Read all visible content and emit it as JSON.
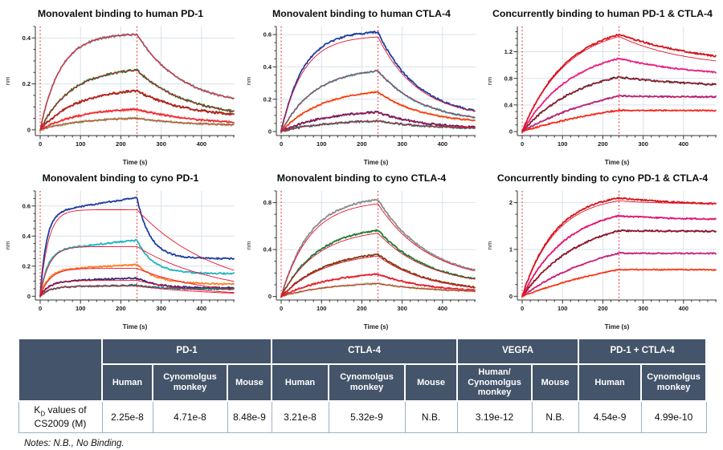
{
  "chart_data": [
    {
      "type": "line",
      "title": "Monovalent binding to human PD-1",
      "xlabel": "Time (s)",
      "ylabel": "nm",
      "xlim": [
        -12,
        482
      ],
      "ylim": [
        -0.025,
        0.45
      ],
      "xticks": [
        0,
        100,
        200,
        300,
        400
      ],
      "yticks": [
        0,
        0.2,
        0.4
      ],
      "x_minor_step": 20,
      "t_dissoc": 240,
      "grid": true,
      "noise": 0.005,
      "fit_color": "#e8112d",
      "dash_color": "#f21d1d",
      "series": [
        {
          "color": "#8a8a8a",
          "peak": 0.415,
          "ka": 0.02,
          "end": 0.1,
          "kd": 0.009
        },
        {
          "color": "#1e7a33",
          "peak": 0.26,
          "ka": 0.013,
          "end": 0.05,
          "kd": 0.008
        },
        {
          "color": "#8a2f10",
          "peak": 0.17,
          "ka": 0.011,
          "end": 0.05,
          "kd": 0.008
        },
        {
          "color": "#f8524a",
          "peak": 0.09,
          "ka": 0.01,
          "end": 0.02,
          "kd": 0.007
        },
        {
          "color": "#8aba6c",
          "peak": 0.05,
          "ka": 0.01,
          "end": 0.015,
          "kd": 0.007
        }
      ]
    },
    {
      "type": "line",
      "title": "Monovalent binding to human CTLA-4",
      "xlabel": "Time (s)",
      "ylabel": "nm",
      "xlim": [
        -12,
        482
      ],
      "ylim": [
        -0.025,
        0.65
      ],
      "xticks": [
        0,
        100,
        200,
        300,
        400
      ],
      "yticks": [
        0,
        0.2,
        0.4,
        0.6
      ],
      "x_minor_step": 20,
      "t_dissoc": 240,
      "grid": true,
      "noise": 0.006,
      "fit_color": "#e8112d",
      "dash_color": "#f21d1d",
      "series": [
        {
          "color": "#1e3f9e",
          "peak": 0.615,
          "ka": 0.018,
          "end": 0.08,
          "kd": 0.01,
          "fit": {
            "peak": 0.585
          }
        },
        {
          "color": "#20b4bc",
          "peak": 0.375,
          "ka": 0.012,
          "end": 0.05,
          "kd": 0.009
        },
        {
          "color": "#ff7e22",
          "peak": 0.245,
          "ka": 0.01,
          "end": 0.045,
          "kd": 0.009
        },
        {
          "color": "#3a2272",
          "peak": 0.12,
          "ka": 0.009,
          "end": 0.015,
          "kd": 0.009
        },
        {
          "color": "#247270",
          "peak": 0.065,
          "ka": 0.009,
          "end": 0.015,
          "kd": 0.008
        }
      ]
    },
    {
      "type": "line",
      "title": "Concurrently binding to human PD-1 & CTLA-4",
      "xlabel": "Time (s)",
      "ylabel": "nm",
      "xlim": [
        -12,
        482
      ],
      "ylim": [
        -0.06,
        1.58
      ],
      "xticks": [
        0,
        100,
        200,
        300,
        400
      ],
      "yticks": [
        0,
        0.4,
        0.8,
        1.2
      ],
      "x_minor_step": 20,
      "t_dissoc": 240,
      "grid": true,
      "noise": 0.012,
      "fit_color": "#e8112d",
      "dash_color": "#f21d1d",
      "series": [
        {
          "color": "#d41418",
          "peak": 1.46,
          "ka": 0.009,
          "end": 0.93,
          "kd": 0.004,
          "fit": {
            "peak": 1.43,
            "end": 0.95,
            "kd": 0.006
          }
        },
        {
          "color": "#e83cc8",
          "peak": 1.1,
          "ka": 0.008,
          "end": 0.8,
          "kd": 0.005
        },
        {
          "color": "#2e2a2a",
          "peak": 0.82,
          "ka": 0.007,
          "end": 0.66,
          "kd": 0.005
        },
        {
          "color": "#9633a8",
          "peak": 0.535,
          "ka": 0.004,
          "end": 0.52,
          "kd": 0.008
        },
        {
          "color": "#ff4f22",
          "peak": 0.32,
          "ka": 0.0032,
          "end": 0.315,
          "kd": 0.008
        }
      ]
    },
    {
      "type": "line",
      "title": "Monovalent binding to cyno PD-1",
      "xlabel": "Time (s)",
      "ylabel": "nm",
      "xlim": [
        -12,
        482
      ],
      "ylim": [
        -0.025,
        0.7
      ],
      "xticks": [
        0,
        100,
        200,
        300,
        400
      ],
      "yticks": [
        0,
        0.2,
        0.4,
        0.6
      ],
      "x_minor_step": 20,
      "t_dissoc": 240,
      "grid": true,
      "noise": 0.005,
      "fit_color": "#e8112d",
      "dash_color": "#f21d1d",
      "series": [
        {
          "color": "#1e3f9e",
          "a_amp": 0.555,
          "a_rate": 0.065,
          "a_slope": 0.00042,
          "end": 0.25,
          "kd": 0.03,
          "fit": {
            "a_amp": null,
            "peak": 0.575,
            "ka": 0.05,
            "end": 0.0,
            "kd": 0.005
          }
        },
        {
          "color": "#20b4bc",
          "a_amp": 0.305,
          "a_rate": 0.055,
          "a_slope": 0.00028,
          "end": 0.15,
          "kd": 0.025,
          "fit": {
            "a_amp": null,
            "peak": 0.33,
            "ka": 0.045,
            "end": 0.0,
            "kd": 0.005
          }
        },
        {
          "color": "#ff7e22",
          "a_amp": 0.172,
          "a_rate": 0.05,
          "a_slope": 0.00016,
          "end": 0.08,
          "kd": 0.02,
          "fit": {
            "a_amp": null,
            "peak": 0.185,
            "ka": 0.04,
            "end": 0.0,
            "kd": 0.006
          }
        },
        {
          "color": "#3a2272",
          "a_amp": 0.097,
          "a_rate": 0.045,
          "a_slope": 0.0001,
          "end": 0.055,
          "kd": 0.02,
          "fit": {
            "a_amp": null,
            "peak": 0.105,
            "ka": 0.04,
            "end": 0.0,
            "kd": 0.006
          }
        },
        {
          "color": "#247270",
          "a_amp": 0.061,
          "a_rate": 0.045,
          "a_slope": 5e-05,
          "end": 0.048,
          "kd": 0.02,
          "fit": {
            "a_amp": null,
            "peak": 0.067,
            "ka": 0.04,
            "end": 0.0,
            "kd": 0.005
          }
        }
      ]
    },
    {
      "type": "line",
      "title": "Monovalent binding to cyno CTLA-4",
      "xlabel": "Time (s)",
      "ylabel": "nm",
      "xlim": [
        -12,
        482
      ],
      "ylim": [
        -0.03,
        0.9
      ],
      "xticks": [
        0,
        100,
        200,
        300,
        400
      ],
      "yticks": [
        0,
        0.4,
        0.8
      ],
      "x_minor_step": 20,
      "t_dissoc": 240,
      "grid": true,
      "noise": 0.007,
      "fit_color": "#e8112d",
      "dash_color": "#f21d1d",
      "series": [
        {
          "color": "#8a8a8a",
          "peak": 0.825,
          "ka": 0.014,
          "end": 0.12,
          "kd": 0.008,
          "fit": {
            "peak": 0.79
          }
        },
        {
          "color": "#1e7a33",
          "peak": 0.565,
          "ka": 0.011,
          "end": 0.08,
          "kd": 0.008,
          "fit": {
            "peak": 0.54
          }
        },
        {
          "color": "#7c3c12",
          "peak": 0.36,
          "ka": 0.009,
          "end": 0.03,
          "kd": 0.008,
          "fit": {
            "peak": 0.345
          }
        },
        {
          "color": "#e43636",
          "peak": 0.19,
          "ka": 0.008,
          "end": 0.03,
          "kd": 0.008
        },
        {
          "color": "#93bc6e",
          "peak": 0.11,
          "ka": 0.008,
          "end": 0.03,
          "kd": 0.007
        }
      ]
    },
    {
      "type": "line",
      "title": "Concurrently binding to cyno PD-1 & CTLA-4",
      "xlabel": "Time (s)",
      "ylabel": "nm",
      "xlim": [
        -12,
        482
      ],
      "ylim": [
        -0.08,
        2.25
      ],
      "xticks": [
        0,
        100,
        200,
        300,
        400
      ],
      "yticks": [
        0,
        1,
        2
      ],
      "x_minor_step": 20,
      "t_dissoc": 240,
      "grid": true,
      "noise": 0.015,
      "fit_color": "#e8112d",
      "dash_color": "#f21d1d",
      "series": [
        {
          "color": "#d41418",
          "peak": 2.1,
          "ka": 0.012,
          "end": 1.92,
          "kd": 0.005,
          "fit": {
            "peak": 2.04,
            "end": 1.97,
            "kd": 0.01
          }
        },
        {
          "color": "#e01ea8",
          "peak": 1.72,
          "ka": 0.009,
          "end": 1.63,
          "kd": 0.007
        },
        {
          "color": "#3c1220",
          "peak": 1.4,
          "ka": 0.007,
          "end": 1.39,
          "kd": 0.01
        },
        {
          "color": "#b03cc0",
          "peak": 0.92,
          "ka": 0.0045,
          "end": 0.915,
          "kd": 0.01
        },
        {
          "color": "#ff6c22",
          "peak": 0.57,
          "ka": 0.003,
          "end": 0.565,
          "kd": 0.01
        }
      ]
    }
  ],
  "table": {
    "header_bg": "#44546a",
    "border_color": "#9fb1c6",
    "groups": [
      "PD-1",
      "CTLA-4",
      "VEGFA",
      "PD-1 + CTLA-4"
    ],
    "columns": [
      "Human",
      "Cynomolgus monkey",
      "Mouse",
      "Human",
      "Cynomolgus monkey",
      "Mouse",
      "Human/ Cynomolgus monkey",
      "Mouse",
      "Human",
      "Cynomolgus monkey"
    ],
    "row_label": {
      "prefix": "K",
      "sub": "D",
      "suffix": " values of CS2009 (M)"
    },
    "values": [
      "2.25e-8",
      "4.71e-8",
      "8.48e-9",
      "3.21e-8",
      "5.32e-9",
      "N.B.",
      "3.19e-12",
      "N.B.",
      "4.54e-9",
      "4.99e-10"
    ]
  },
  "notes": "Notes: N.B., No Binding."
}
